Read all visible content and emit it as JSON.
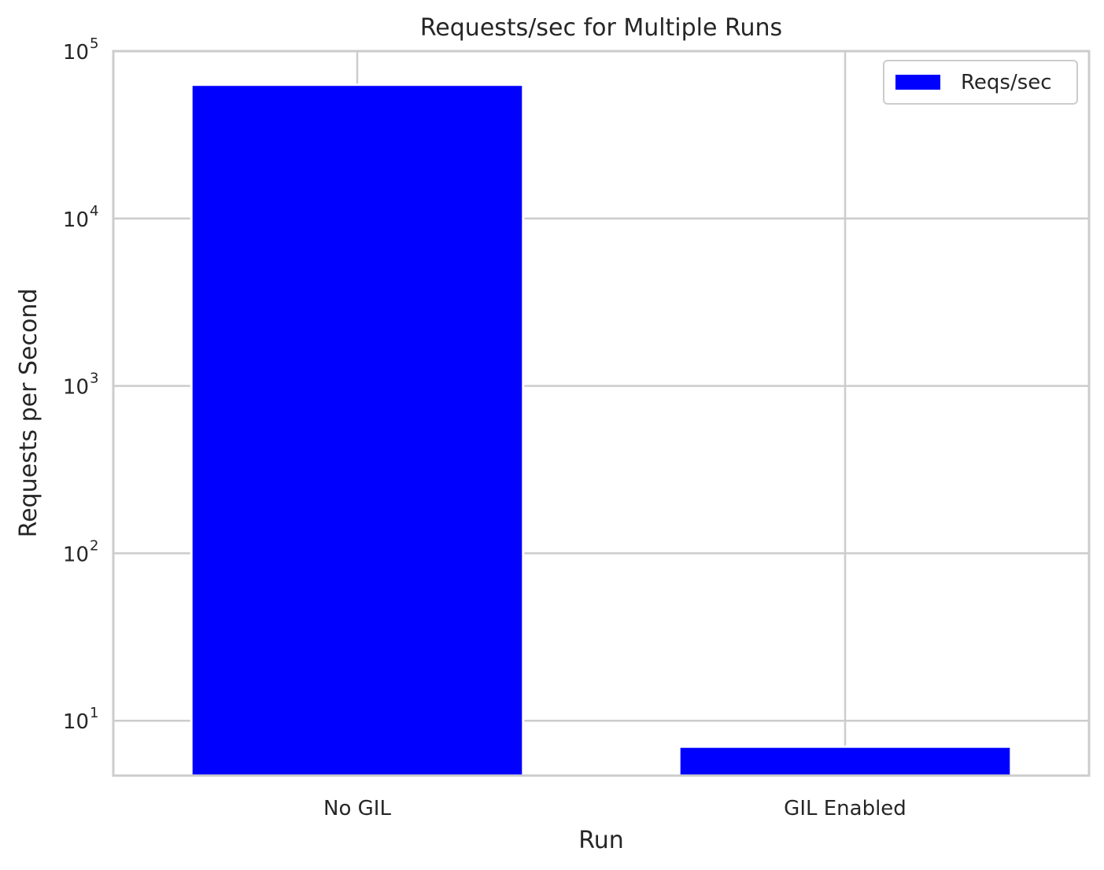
{
  "chart_data": {
    "type": "bar",
    "title": "Requests/sec for Multiple Runs",
    "xlabel": "Run",
    "ylabel": "Requests per Second",
    "categories": [
      "No GIL",
      "GIL Enabled"
    ],
    "series": [
      {
        "name": "Reqs/sec",
        "values": [
          63000,
          7
        ],
        "color": "#0000ff"
      }
    ],
    "yscale": "log",
    "ylim": [
      4.7,
      100000
    ],
    "yticks": [
      {
        "base": "10",
        "exp": "1",
        "value": 10
      },
      {
        "base": "10",
        "exp": "2",
        "value": 100
      },
      {
        "base": "10",
        "exp": "3",
        "value": 1000
      },
      {
        "base": "10",
        "exp": "4",
        "value": 10000
      },
      {
        "base": "10",
        "exp": "5",
        "value": 100000
      }
    ],
    "grid": true,
    "legend_position": "top-right"
  }
}
